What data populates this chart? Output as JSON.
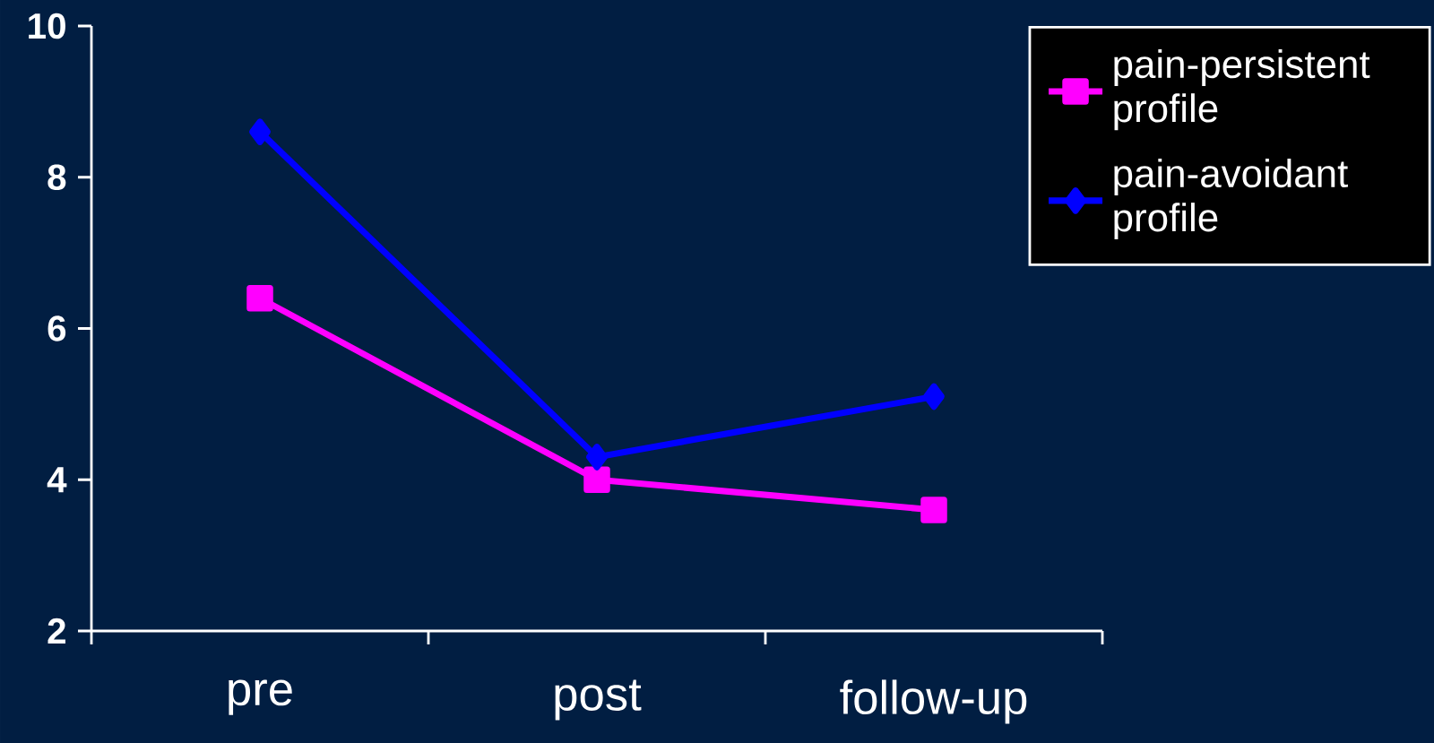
{
  "chart_data": {
    "type": "line",
    "categories": [
      "pre",
      "post",
      "follow-up"
    ],
    "series": [
      {
        "name": "pain-persistent profile",
        "color": "#ff00ff",
        "marker": "square",
        "values": [
          6.4,
          4.0,
          3.6
        ]
      },
      {
        "name": "pain-avoidant profile",
        "color": "#0000ff",
        "marker": "diamond",
        "values": [
          8.6,
          4.3,
          5.1
        ]
      }
    ],
    "ylim": [
      2,
      10
    ],
    "yticks": [
      2,
      4,
      6,
      8,
      10
    ],
    "grid": false,
    "legend": "top right"
  }
}
